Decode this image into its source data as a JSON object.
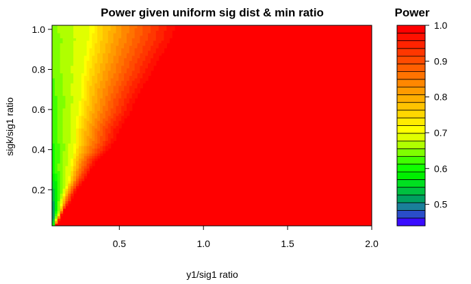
{
  "chart_data": {
    "type": "heatmap",
    "subtype": "filled-contour",
    "title": "Power given uniform sig dist & min ratio",
    "xlabel": "y1/sig1 ratio",
    "ylabel": "sigk/sig1 ratio",
    "xlim": [
      0.1,
      2.0
    ],
    "ylim": [
      0.02,
      1.02
    ],
    "x_ticks": [
      0.5,
      1.0,
      1.5,
      2.0
    ],
    "x_tick_labels": [
      "0.5",
      "1.0",
      "1.5",
      "2.0"
    ],
    "y_ticks": [
      0.2,
      0.4,
      0.6,
      0.8,
      1.0
    ],
    "y_tick_labels": [
      "0.2",
      "0.4",
      "0.6",
      "0.8",
      "1.0"
    ],
    "legend": {
      "title": "Power",
      "placement": "right",
      "range": [
        0.44,
        1.0
      ],
      "ticks": [
        0.5,
        0.6,
        0.7,
        0.8,
        0.9,
        1.0
      ],
      "tick_labels": [
        "0.5",
        "0.6",
        "0.7",
        "0.8",
        "0.9",
        "1.0"
      ],
      "colors": [
        "#3a0cff",
        "#2a4dc9",
        "#1a7f9a",
        "#00a060",
        "#00c040",
        "#00e020",
        "#00f000",
        "#10ff00",
        "#40ff00",
        "#7fff00",
        "#b0ff00",
        "#e0ff00",
        "#ffff00",
        "#ffeb00",
        "#ffd700",
        "#ffc300",
        "#ffaf00",
        "#ff9b00",
        "#ff8700",
        "#ff7300",
        "#ff5f00",
        "#ff4b00",
        "#ff3700",
        "#ff2300",
        "#ff1000",
        "#ff0000"
      ]
    },
    "rows": {
      "y": [
        0.02,
        0.06,
        0.1,
        0.15,
        0.2,
        0.25,
        0.3,
        0.35,
        0.4,
        0.45,
        0.5,
        0.55,
        0.6,
        0.65,
        0.7,
        0.75,
        0.8,
        0.85,
        0.9,
        0.95,
        1.0,
        1.02
      ],
      "green_edge": [
        0.11,
        0.13,
        0.15,
        0.16,
        0.18,
        0.2,
        0.21,
        0.22,
        0.23,
        0.24,
        0.24,
        0.25,
        0.26,
        0.27,
        0.27,
        0.28,
        0.29,
        0.3,
        0.31,
        0.32,
        0.33,
        0.33
      ],
      "red_edge": [
        0.12,
        0.15,
        0.17,
        0.22,
        0.25,
        0.3,
        0.34,
        0.38,
        0.45,
        0.5,
        0.52,
        0.56,
        0.6,
        0.62,
        0.66,
        0.7,
        0.74,
        0.77,
        0.81,
        0.85,
        0.87,
        0.88
      ],
      "min_power": [
        0.44,
        0.46,
        0.48,
        0.5,
        0.53,
        0.56,
        0.6,
        0.6,
        0.6,
        0.61,
        0.61,
        0.62,
        0.62,
        0.62,
        0.63,
        0.63,
        0.64,
        0.64,
        0.64,
        0.64,
        0.65,
        0.65
      ]
    }
  }
}
